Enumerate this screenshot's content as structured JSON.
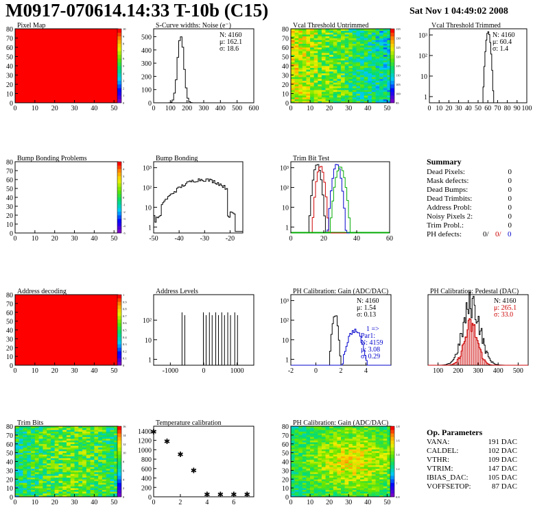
{
  "page": {
    "title": "M0917-070614.14:33 T-10b (C15)",
    "date": "Sat Nov  1 04:49:02 2008"
  },
  "summary": {
    "title": "Summary",
    "rows": [
      {
        "label": "Dead Pixels:",
        "value": "0"
      },
      {
        "label": "Mask defects:",
        "value": "0"
      },
      {
        "label": "Dead Bumps:",
        "value": "0"
      },
      {
        "label": "Dead Trimbits:",
        "value": "0"
      },
      {
        "label": "Address Probl:",
        "value": "0"
      },
      {
        "label": "Noisy Pixels 2:",
        "value": "0"
      },
      {
        "label": "Trim Probl.:",
        "value": "0"
      }
    ],
    "ph_label": "PH defects:",
    "ph_values": [
      "0/",
      "0/",
      "0"
    ],
    "ph_colors": [
      "#000000",
      "#cc0000",
      "#0000cc"
    ]
  },
  "op_params": {
    "title": "Op. Parameters",
    "rows": [
      {
        "label": "VANA:",
        "value": "191 DAC"
      },
      {
        "label": "CALDEL:",
        "value": "102 DAC"
      },
      {
        "label": "VTHR:",
        "value": "109 DAC"
      },
      {
        "label": "VTRIM:",
        "value": "147 DAC"
      },
      {
        "label": "IBIAS_DAC:",
        "value": "105 DAC"
      },
      {
        "label": "VOFFSETOP:",
        "value": "87 DAC"
      }
    ]
  },
  "chart_data": [
    {
      "id": "pixel-map",
      "type": "heatmap",
      "title": "Pixel Map",
      "fill": "uniform-max",
      "xlim": [
        0,
        52
      ],
      "ylim": [
        0,
        80
      ],
      "xticks": [
        0,
        10,
        20,
        30,
        40,
        50
      ],
      "yticks": [
        0,
        10,
        20,
        30,
        40,
        50,
        60,
        70,
        80
      ],
      "zlim": [
        0,
        10
      ],
      "zticks": [
        "0",
        "1",
        "2",
        "3",
        "4",
        "5",
        "6",
        "7",
        "8",
        "9",
        "10"
      ]
    },
    {
      "id": "scurve",
      "type": "histogram",
      "title": "S-Curve widths: Noise (e⁻)",
      "xlim": [
        0,
        600
      ],
      "ylim": [
        0,
        560
      ],
      "xticks": [
        0,
        100,
        200,
        300,
        400,
        500,
        600
      ],
      "yticks": [
        0,
        100,
        200,
        300,
        400,
        500
      ],
      "log": false,
      "stats": [
        "N: 4160",
        "μ: 162.1",
        "σ: 18.6"
      ],
      "series": [
        {
          "color": "#000000",
          "mean": 162.1,
          "sigma": 18.6,
          "peak": 520
        }
      ]
    },
    {
      "id": "vcal-untrimmed",
      "type": "heatmap",
      "title": "Vcal Threshold Untrimmed",
      "fill": "noise-gradient",
      "xlim": [
        0,
        52
      ],
      "ylim": [
        0,
        80
      ],
      "xticks": [
        0,
        10,
        20,
        30,
        40,
        50
      ],
      "yticks": [
        0,
        10,
        20,
        30,
        40,
        50,
        60,
        70,
        80
      ],
      "zlim": [
        95,
        135
      ],
      "zticks": [
        "95",
        "100",
        "105",
        "110",
        "115",
        "120",
        "125",
        "130",
        "135"
      ]
    },
    {
      "id": "vcal-trimmed",
      "type": "histogram",
      "title": "Vcal Threshold Trimmed",
      "xlim": [
        0,
        100
      ],
      "ylim": [
        0.5,
        2000
      ],
      "xticks": [
        0,
        10,
        20,
        30,
        40,
        50,
        60,
        70,
        80,
        90,
        100
      ],
      "ytick_labels": [
        "1",
        "10",
        "10²",
        "10³"
      ],
      "log": true,
      "stats": [
        "N: 4160",
        "μ: 60.4",
        "σ:  1.4"
      ],
      "series": [
        {
          "color": "#000000",
          "mean": 60.4,
          "sigma": 1.4,
          "peak": 1400
        }
      ]
    },
    {
      "id": "bump-problems",
      "type": "heatmap",
      "title": "Bump Bonding Problems",
      "fill": "empty",
      "xlim": [
        0,
        52
      ],
      "ylim": [
        0,
        80
      ],
      "xticks": [
        0,
        10,
        20,
        30,
        40,
        50
      ],
      "yticks": [
        0,
        10,
        20,
        30,
        40,
        50,
        60,
        70,
        80
      ],
      "zlim": [
        -5,
        5
      ],
      "zticks": [
        "-5",
        "-4",
        "-3",
        "-2",
        "-1",
        "0",
        "1",
        "2",
        "3",
        "4",
        "5"
      ]
    },
    {
      "id": "bump-bonding",
      "type": "histogram",
      "title": "Bump Bonding",
      "xlim": [
        -50,
        -15
      ],
      "ylim": [
        0.5,
        2000
      ],
      "xticks": [
        -50,
        -40,
        -30,
        -20
      ],
      "ytick_labels": [
        "1",
        "10",
        "10²",
        "10³"
      ],
      "log": true,
      "series": [
        {
          "color": "#000000",
          "shape": "bump",
          "peak": 250,
          "center": -31
        }
      ]
    },
    {
      "id": "trim-bit",
      "type": "histogram",
      "title": "Trim Bit Test",
      "xlim": [
        0,
        60
      ],
      "ylim": [
        0.5,
        2000
      ],
      "xticks": [
        0,
        20,
        40,
        60
      ],
      "ytick_labels": [
        "1",
        "10",
        "10²",
        "10³"
      ],
      "log": true,
      "series": [
        {
          "color": "#000000",
          "mean": 16,
          "sigma": 1.3,
          "peak": 1500
        },
        {
          "color": "#cc0000",
          "mean": 18,
          "sigma": 1.3,
          "peak": 1200
        },
        {
          "color": "#0000cc",
          "mean": 28,
          "sigma": 1.4,
          "peak": 1500
        },
        {
          "color": "#00aa00",
          "mean": 30,
          "sigma": 1.6,
          "peak": 1100
        }
      ]
    },
    {
      "id": "address-decoding",
      "type": "heatmap",
      "title": "Address decoding",
      "fill": "uniform-max",
      "xlim": [
        0,
        52
      ],
      "ylim": [
        0,
        80
      ],
      "xticks": [
        0,
        10,
        20,
        30,
        40,
        50
      ],
      "yticks": [
        0,
        10,
        20,
        30,
        40,
        50,
        60,
        70,
        80
      ],
      "zlim": [
        0,
        1
      ],
      "zticks": [
        "0",
        "0.1",
        "0.2",
        "0.3",
        "0.4",
        "0.5",
        "0.6",
        "0.7",
        "0.8",
        "0.9",
        "1"
      ]
    },
    {
      "id": "address-levels",
      "type": "histogram",
      "title": "Address Levels",
      "xlim": [
        -1500,
        1500
      ],
      "ylim": [
        0.5,
        2000
      ],
      "xticks": [
        -1000,
        0,
        1000
      ],
      "ytick_labels": [
        "1",
        "10",
        "10²"
      ],
      "log": true,
      "series": [
        {
          "color": "#000000",
          "spikes": [
            -650,
            -10,
            170,
            360,
            540,
            720,
            930
          ]
        }
      ]
    },
    {
      "id": "ph-gain",
      "type": "histogram",
      "title": "PH Calibration: Gain (ADC/DAC)",
      "xlim": [
        -2,
        6
      ],
      "ylim": [
        0.5,
        2000
      ],
      "xticks": [
        -2,
        0,
        2,
        4
      ],
      "ytick_labels": [
        "1",
        "10",
        "10²",
        "10³"
      ],
      "log": true,
      "stats": [
        "N: 4160",
        "μ: 1.54",
        "σ: 0.13"
      ],
      "series": [
        {
          "color": "#000000",
          "mean": 1.54,
          "sigma": 0.13,
          "peak": 200
        },
        {
          "color": "#0000cc",
          "mean": 3.1,
          "sigma": 0.35,
          "peak": 30
        }
      ],
      "annotations": [
        "1 =>",
        "Par1:",
        "N: 4159",
        "μ: 3.08",
        "σ: 0.29"
      ]
    },
    {
      "id": "ph-pedestal",
      "type": "histogram",
      "title": "PH Calibration: Pedestal (DAC)",
      "xlim": [
        50,
        550
      ],
      "ylim": [
        0,
        80
      ],
      "xticks": [
        100,
        200,
        300,
        400,
        500
      ],
      "log": false,
      "stats": [
        "N: 4160",
        "μ: 265.1",
        "σ: 33.0"
      ],
      "stat_colors": [
        "#000000",
        "#cc0000",
        "#cc0000"
      ],
      "series": [
        {
          "color": "#000000",
          "mean": 268,
          "sigma": 42,
          "peak": 70
        },
        {
          "color": "#cc0000",
          "mean": 265.1,
          "sigma": 33.0,
          "peak": 45
        }
      ]
    },
    {
      "id": "trim-bits",
      "type": "heatmap",
      "title": "Trim Bits",
      "fill": "trim-gradient",
      "xlim": [
        0,
        52
      ],
      "ylim": [
        0,
        80
      ],
      "xticks": [
        0,
        10,
        20,
        30,
        40,
        50
      ],
      "yticks": [
        0,
        10,
        20,
        30,
        40,
        50,
        60,
        70,
        80
      ],
      "zlim": [
        0,
        16
      ],
      "zticks": [
        "0",
        "2",
        "4",
        "6",
        "8",
        "10",
        "12",
        "14",
        "16"
      ]
    },
    {
      "id": "temperature",
      "type": "scatter",
      "title": "Temperature calibration",
      "xlim": [
        0,
        7.5
      ],
      "ylim": [
        0,
        1500
      ],
      "xticks": [
        0,
        2,
        4,
        6
      ],
      "yticks": [
        0,
        200,
        400,
        600,
        800,
        1000,
        1200,
        1400
      ],
      "x": [
        0,
        1,
        2,
        3,
        4,
        5,
        6,
        7
      ],
      "y": [
        1380,
        1180,
        900,
        560,
        50,
        50,
        50,
        50
      ]
    },
    {
      "id": "ph-gain-map",
      "type": "heatmap",
      "title": "PH Calibration: Gain (ADC/DAC)",
      "fill": "gain-gradient",
      "xlim": [
        0,
        52
      ],
      "ylim": [
        0,
        80
      ],
      "xticks": [
        0,
        10,
        20,
        30,
        40,
        50
      ],
      "yticks": [
        0,
        10,
        20,
        30,
        40,
        50,
        60,
        70,
        80
      ],
      "zlim": [
        0.6,
        1.8
      ],
      "zticks": [
        "0.8",
        "1",
        "1.2",
        "1.4",
        "1.6",
        "1.8"
      ]
    }
  ]
}
